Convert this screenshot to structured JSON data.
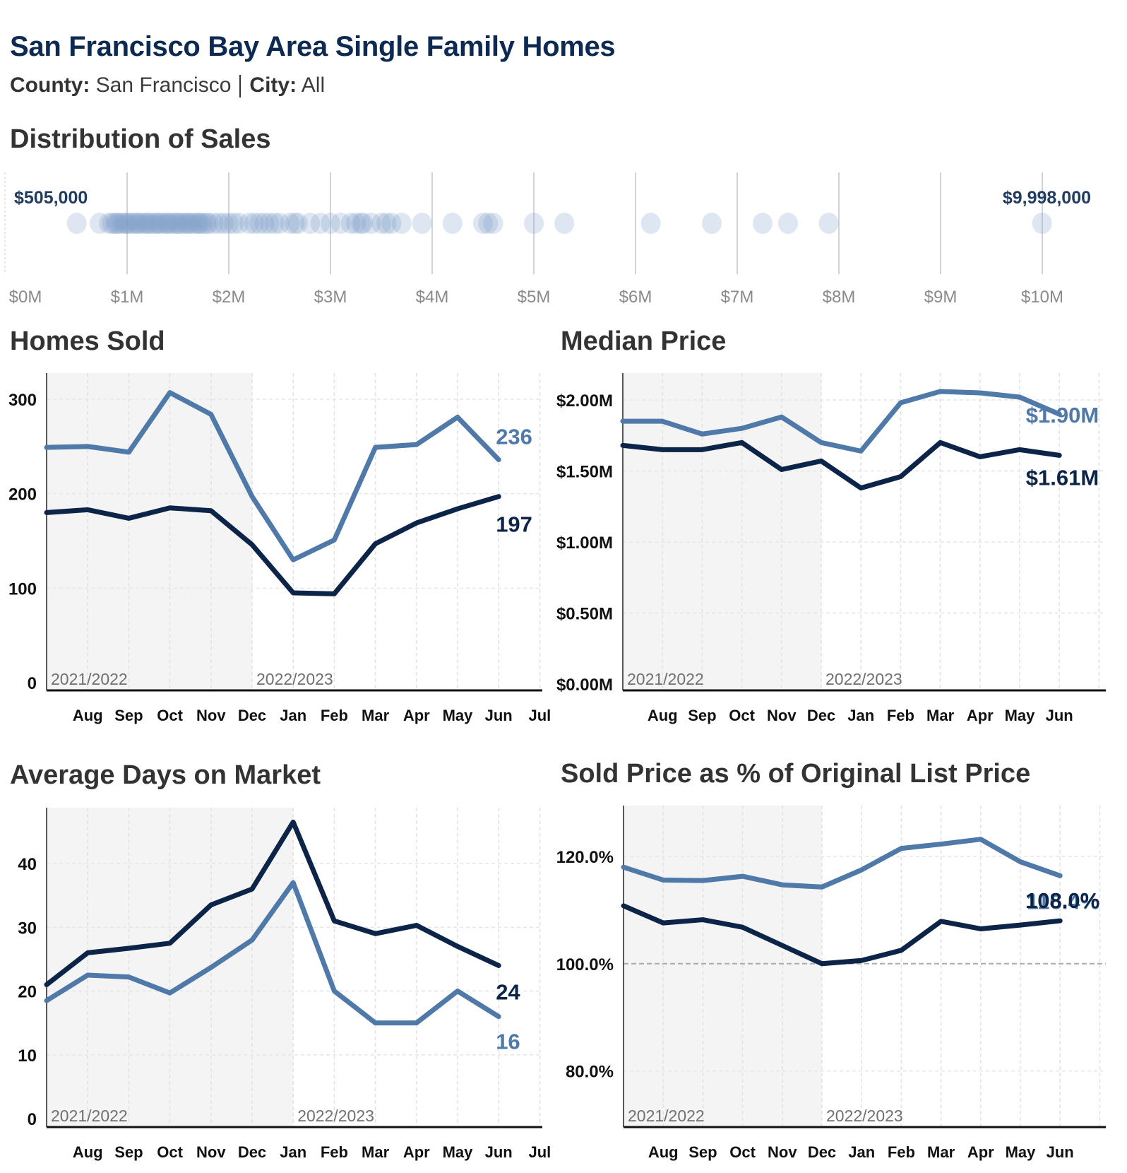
{
  "header": {
    "title": "San Francisco Bay Area Single Family Homes",
    "county_label": "County:",
    "county_value": "San Francisco",
    "city_label": "City:",
    "city_value": "All"
  },
  "colors": {
    "title": "#0d2a52",
    "current_series": "#0b2447",
    "prior_series": "#4f79a8",
    "shade": "#f4f4f4",
    "dots": "#7a9cc6"
  },
  "chart_data": [
    {
      "id": "distribution",
      "type": "scatter",
      "title": "Distribution of Sales",
      "xlabel": "",
      "ylabel": "",
      "xlim": [
        0,
        10000000
      ],
      "x_ticks": [
        "$0M",
        "$1M",
        "$2M",
        "$3M",
        "$4M",
        "$5M",
        "$6M",
        "$7M",
        "$8M",
        "$9M",
        "$10M"
      ],
      "x_tick_values": [
        0,
        1000000,
        2000000,
        3000000,
        4000000,
        5000000,
        6000000,
        7000000,
        8000000,
        9000000,
        10000000
      ],
      "min_label": "$505,000",
      "max_label": "$9,998,000",
      "min_value": 505000,
      "max_value": 9998000,
      "points": [
        505000,
        730000,
        820000,
        850000,
        880000,
        900000,
        920000,
        950000,
        980000,
        1000000,
        1020000,
        1050000,
        1080000,
        1100000,
        1120000,
        1150000,
        1180000,
        1200000,
        1220000,
        1250000,
        1280000,
        1300000,
        1320000,
        1350000,
        1380000,
        1400000,
        1420000,
        1450000,
        1480000,
        1500000,
        1520000,
        1550000,
        1580000,
        1600000,
        1620000,
        1650000,
        1680000,
        1700000,
        1720000,
        1750000,
        1780000,
        1800000,
        1850000,
        1900000,
        1950000,
        2000000,
        2050000,
        2100000,
        2200000,
        2250000,
        2300000,
        2350000,
        2400000,
        2450000,
        2500000,
        2600000,
        2650000,
        2680000,
        2800000,
        2900000,
        3000000,
        3100000,
        3200000,
        3250000,
        3300000,
        3320000,
        3400000,
        3500000,
        3550000,
        3600000,
        3700000,
        3900000,
        4200000,
        4500000,
        4550000,
        4600000,
        5000000,
        5300000,
        6150000,
        6750000,
        7250000,
        7500000,
        7900000,
        9998000
      ]
    },
    {
      "id": "homes-sold",
      "type": "line",
      "title": "Homes Sold",
      "xlabel": "",
      "ylabel": "",
      "categories": [
        "Jul",
        "Aug",
        "Sep",
        "Oct",
        "Nov",
        "Dec",
        "Jan",
        "Feb",
        "Mar",
        "Apr",
        "May",
        "Jun"
      ],
      "x_tick_labels": [
        "Aug",
        "Sep",
        "Oct",
        "Nov",
        "Dec",
        "Jan",
        "Feb",
        "Mar",
        "Apr",
        "May",
        "Jun",
        "Jul"
      ],
      "ylim": [
        0,
        330
      ],
      "y_ticks": [
        "0",
        "100",
        "200",
        "300"
      ],
      "y_tick_values": [
        0,
        100,
        200,
        300
      ],
      "period_labels": [
        "2021/2022",
        "2022/2023"
      ],
      "shade_until": "Dec",
      "series": [
        {
          "name": "2021/2022",
          "role": "prior",
          "values": [
            249,
            250,
            244,
            307,
            284,
            197,
            130,
            151,
            249,
            252,
            281,
            236
          ],
          "end_label": "236"
        },
        {
          "name": "2022/2023",
          "role": "current",
          "values": [
            180,
            183,
            174,
            185,
            182,
            146,
            95,
            94,
            147,
            169,
            184,
            197
          ],
          "end_label": "197"
        }
      ]
    },
    {
      "id": "median-price",
      "type": "line",
      "title": "Median Price",
      "xlabel": "",
      "ylabel": "",
      "categories": [
        "Jul",
        "Aug",
        "Sep",
        "Oct",
        "Nov",
        "Dec",
        "Jan",
        "Feb",
        "Mar",
        "Apr",
        "May",
        "Jun"
      ],
      "x_tick_labels": [
        "Aug",
        "Sep",
        "Oct",
        "Nov",
        "Dec",
        "Jan",
        "Feb",
        "Mar",
        "Apr",
        "May",
        "Jun"
      ],
      "ylim": [
        0,
        2.2
      ],
      "y_ticks": [
        "$0.00M",
        "$0.50M",
        "$1.00M",
        "$1.50M",
        "$2.00M"
      ],
      "y_tick_values": [
        0,
        0.5,
        1.0,
        1.5,
        2.0
      ],
      "period_labels": [
        "2021/2022",
        "2022/2023"
      ],
      "shade_until": "Dec",
      "series": [
        {
          "name": "2021/2022",
          "role": "prior",
          "values": [
            1.85,
            1.85,
            1.76,
            1.8,
            1.88,
            1.7,
            1.64,
            1.98,
            2.06,
            2.05,
            2.02,
            1.9
          ],
          "end_label": "$1.90M"
        },
        {
          "name": "2022/2023",
          "role": "current",
          "values": [
            1.68,
            1.65,
            1.65,
            1.7,
            1.51,
            1.57,
            1.38,
            1.46,
            1.7,
            1.6,
            1.65,
            1.61
          ],
          "end_label": "$1.61M"
        }
      ]
    },
    {
      "id": "days-on-market",
      "type": "line",
      "title": "Average Days on Market",
      "xlabel": "",
      "ylabel": "",
      "categories": [
        "Jul",
        "Aug",
        "Sep",
        "Oct",
        "Nov",
        "Dec",
        "Jan",
        "Feb",
        "Mar",
        "Apr",
        "May",
        "Jun"
      ],
      "x_tick_labels": [
        "Aug",
        "Sep",
        "Oct",
        "Nov",
        "Dec",
        "Jan",
        "Feb",
        "Mar",
        "Apr",
        "May",
        "Jun",
        "Jul"
      ],
      "ylim": [
        0,
        50
      ],
      "y_ticks": [
        "0",
        "10",
        "20",
        "30",
        "40"
      ],
      "y_tick_values": [
        0,
        10,
        20,
        30,
        40
      ],
      "period_labels": [
        "2021/2022",
        "2022/2023"
      ],
      "shade_until": "Jan",
      "series": [
        {
          "name": "2021/2022",
          "role": "prior",
          "values": [
            18.5,
            22.5,
            22.2,
            19.7,
            23.7,
            28,
            37,
            20,
            15,
            15,
            20,
            16
          ],
          "end_label": "16"
        },
        {
          "name": "2022/2023",
          "role": "current",
          "values": [
            21,
            26,
            26.7,
            27.5,
            33.5,
            36,
            46.5,
            31,
            29,
            30.3,
            27,
            24
          ],
          "end_label": "24"
        }
      ]
    },
    {
      "id": "sold-to-list",
      "type": "line",
      "title": "Sold Price as % of Original List Price",
      "xlabel": "",
      "ylabel": "",
      "categories": [
        "Jul",
        "Aug",
        "Sep",
        "Oct",
        "Nov",
        "Dec",
        "Jan",
        "Feb",
        "Mar",
        "Apr",
        "May",
        "Jun"
      ],
      "x_tick_labels": [
        "Aug",
        "Sep",
        "Oct",
        "Nov",
        "Dec",
        "Jan",
        "Feb",
        "Mar",
        "Apr",
        "May",
        "Jun"
      ],
      "ylim": [
        70,
        130
      ],
      "y_ticks": [
        "80.0%",
        "100.0%",
        "120.0%"
      ],
      "y_tick_values": [
        80,
        100,
        120
      ],
      "reference_line": 100,
      "period_labels": [
        "2021/2022",
        "2022/2023"
      ],
      "shade_until": "Dec",
      "series": [
        {
          "name": "2021/2022",
          "role": "prior",
          "values": [
            118,
            115.6,
            115.5,
            116.3,
            114.7,
            114.3,
            117.5,
            121.5,
            122.3,
            123.2,
            119,
            116.4
          ],
          "end_label": "116.4%"
        },
        {
          "name": "2022/2023",
          "role": "current",
          "values": [
            110.8,
            107.6,
            108.2,
            106.8,
            103.4,
            100,
            100.6,
            102.5,
            107.9,
            106.5,
            107.2,
            108.0
          ],
          "end_label": "108.0%"
        }
      ]
    }
  ]
}
